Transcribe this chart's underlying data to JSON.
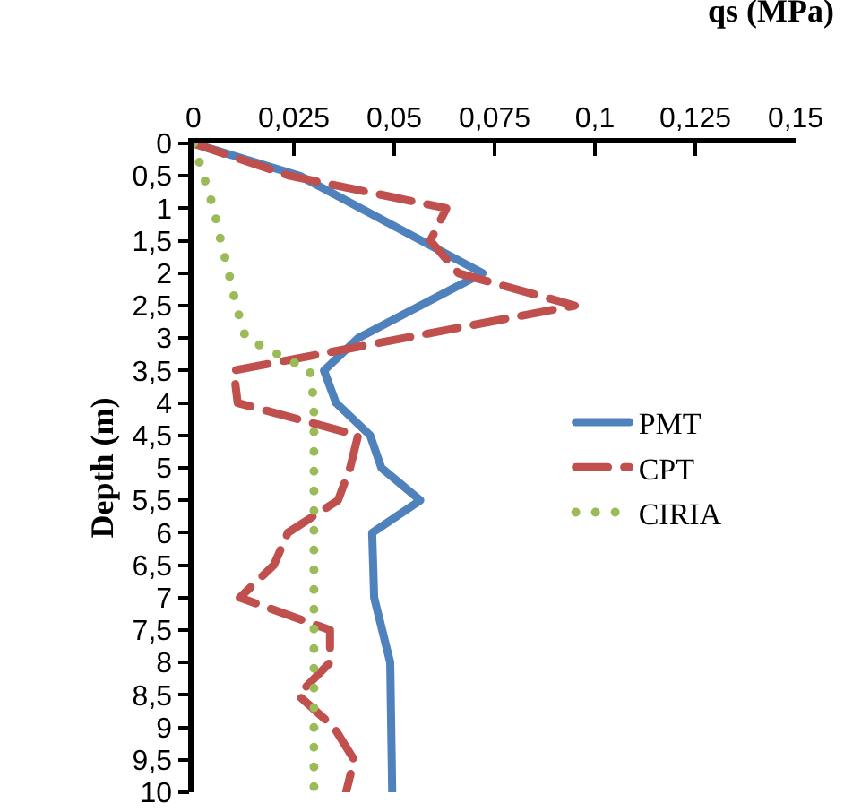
{
  "chart_data": {
    "type": "line",
    "xlabel": "qs (MPa)",
    "ylabel": "Depth (m)",
    "xlim": [
      0,
      0.15
    ],
    "xticks": [
      0,
      {
        "value": 0.025,
        "label": "0,025"
      },
      {
        "value": 0.05,
        "label": "0,05"
      },
      {
        "value": 0.075,
        "label": "0,075"
      },
      {
        "value": 0.1,
        "label": "0,1"
      },
      {
        "value": 0.125,
        "label": "0,125"
      },
      {
        "value": 0.15,
        "label": "0,15"
      }
    ],
    "ylim": [
      10,
      0
    ],
    "yticks": [
      0,
      {
        "value": 0.5,
        "label": "0,5"
      },
      1,
      {
        "value": 1.5,
        "label": "1,5"
      },
      2,
      {
        "value": 2.5,
        "label": "2,5"
      },
      3,
      {
        "value": 3.5,
        "label": "3,5"
      },
      4,
      {
        "value": 4.5,
        "label": "4,5"
      },
      5,
      {
        "value": 5.5,
        "label": "5,5"
      },
      6,
      {
        "value": 6.5,
        "label": "6,5"
      },
      7,
      {
        "value": 7.5,
        "label": "7,5"
      },
      8,
      {
        "value": 8.5,
        "label": "8,5"
      },
      9,
      {
        "value": 9.5,
        "label": "9,5"
      },
      10
    ],
    "grid": false,
    "legend": "right",
    "marker": "none",
    "series": [
      {
        "name": "PMT",
        "color": "#4f81bd",
        "line_style": "solid",
        "x": [
          0,
          0.0265,
          0.072,
          0.041,
          0.0325,
          0.0355,
          0.044,
          0.0468,
          0.0565,
          0.0445,
          0.045,
          0.049,
          0.0495
        ],
        "values": [
          0,
          0.5,
          2,
          3,
          3.5,
          4,
          4.5,
          5,
          5.5,
          6,
          7,
          8,
          10
        ]
      },
      {
        "name": "CPT",
        "color": "#c0504d",
        "line_style": "dashed",
        "x": [
          0,
          0.024,
          0.063,
          0.059,
          0.066,
          0.095,
          0.01,
          0.011,
          0.041,
          0.039,
          0.036,
          0.0235,
          0.02,
          0.0115,
          0.034,
          0.034,
          0.026,
          0.035,
          0.04,
          0.038
        ],
        "values": [
          0,
          0.5,
          1,
          1.5,
          2,
          2.5,
          3.5,
          4,
          4.5,
          5,
          5.5,
          6,
          6.5,
          7,
          7.5,
          8,
          8.5,
          9,
          9.5,
          10
        ]
      },
      {
        "name": "CIRIA",
        "color": "#9bbb59",
        "line_style": "dotted",
        "x": [
          0,
          0.0025,
          0.005,
          0.0068,
          0.0088,
          0.0106,
          0.013,
          0.021,
          0.029,
          0.03,
          0.03
        ],
        "values": [
          0,
          0.5,
          1,
          1.5,
          2,
          2.5,
          3,
          3.25,
          3.5,
          4,
          10
        ]
      }
    ]
  }
}
